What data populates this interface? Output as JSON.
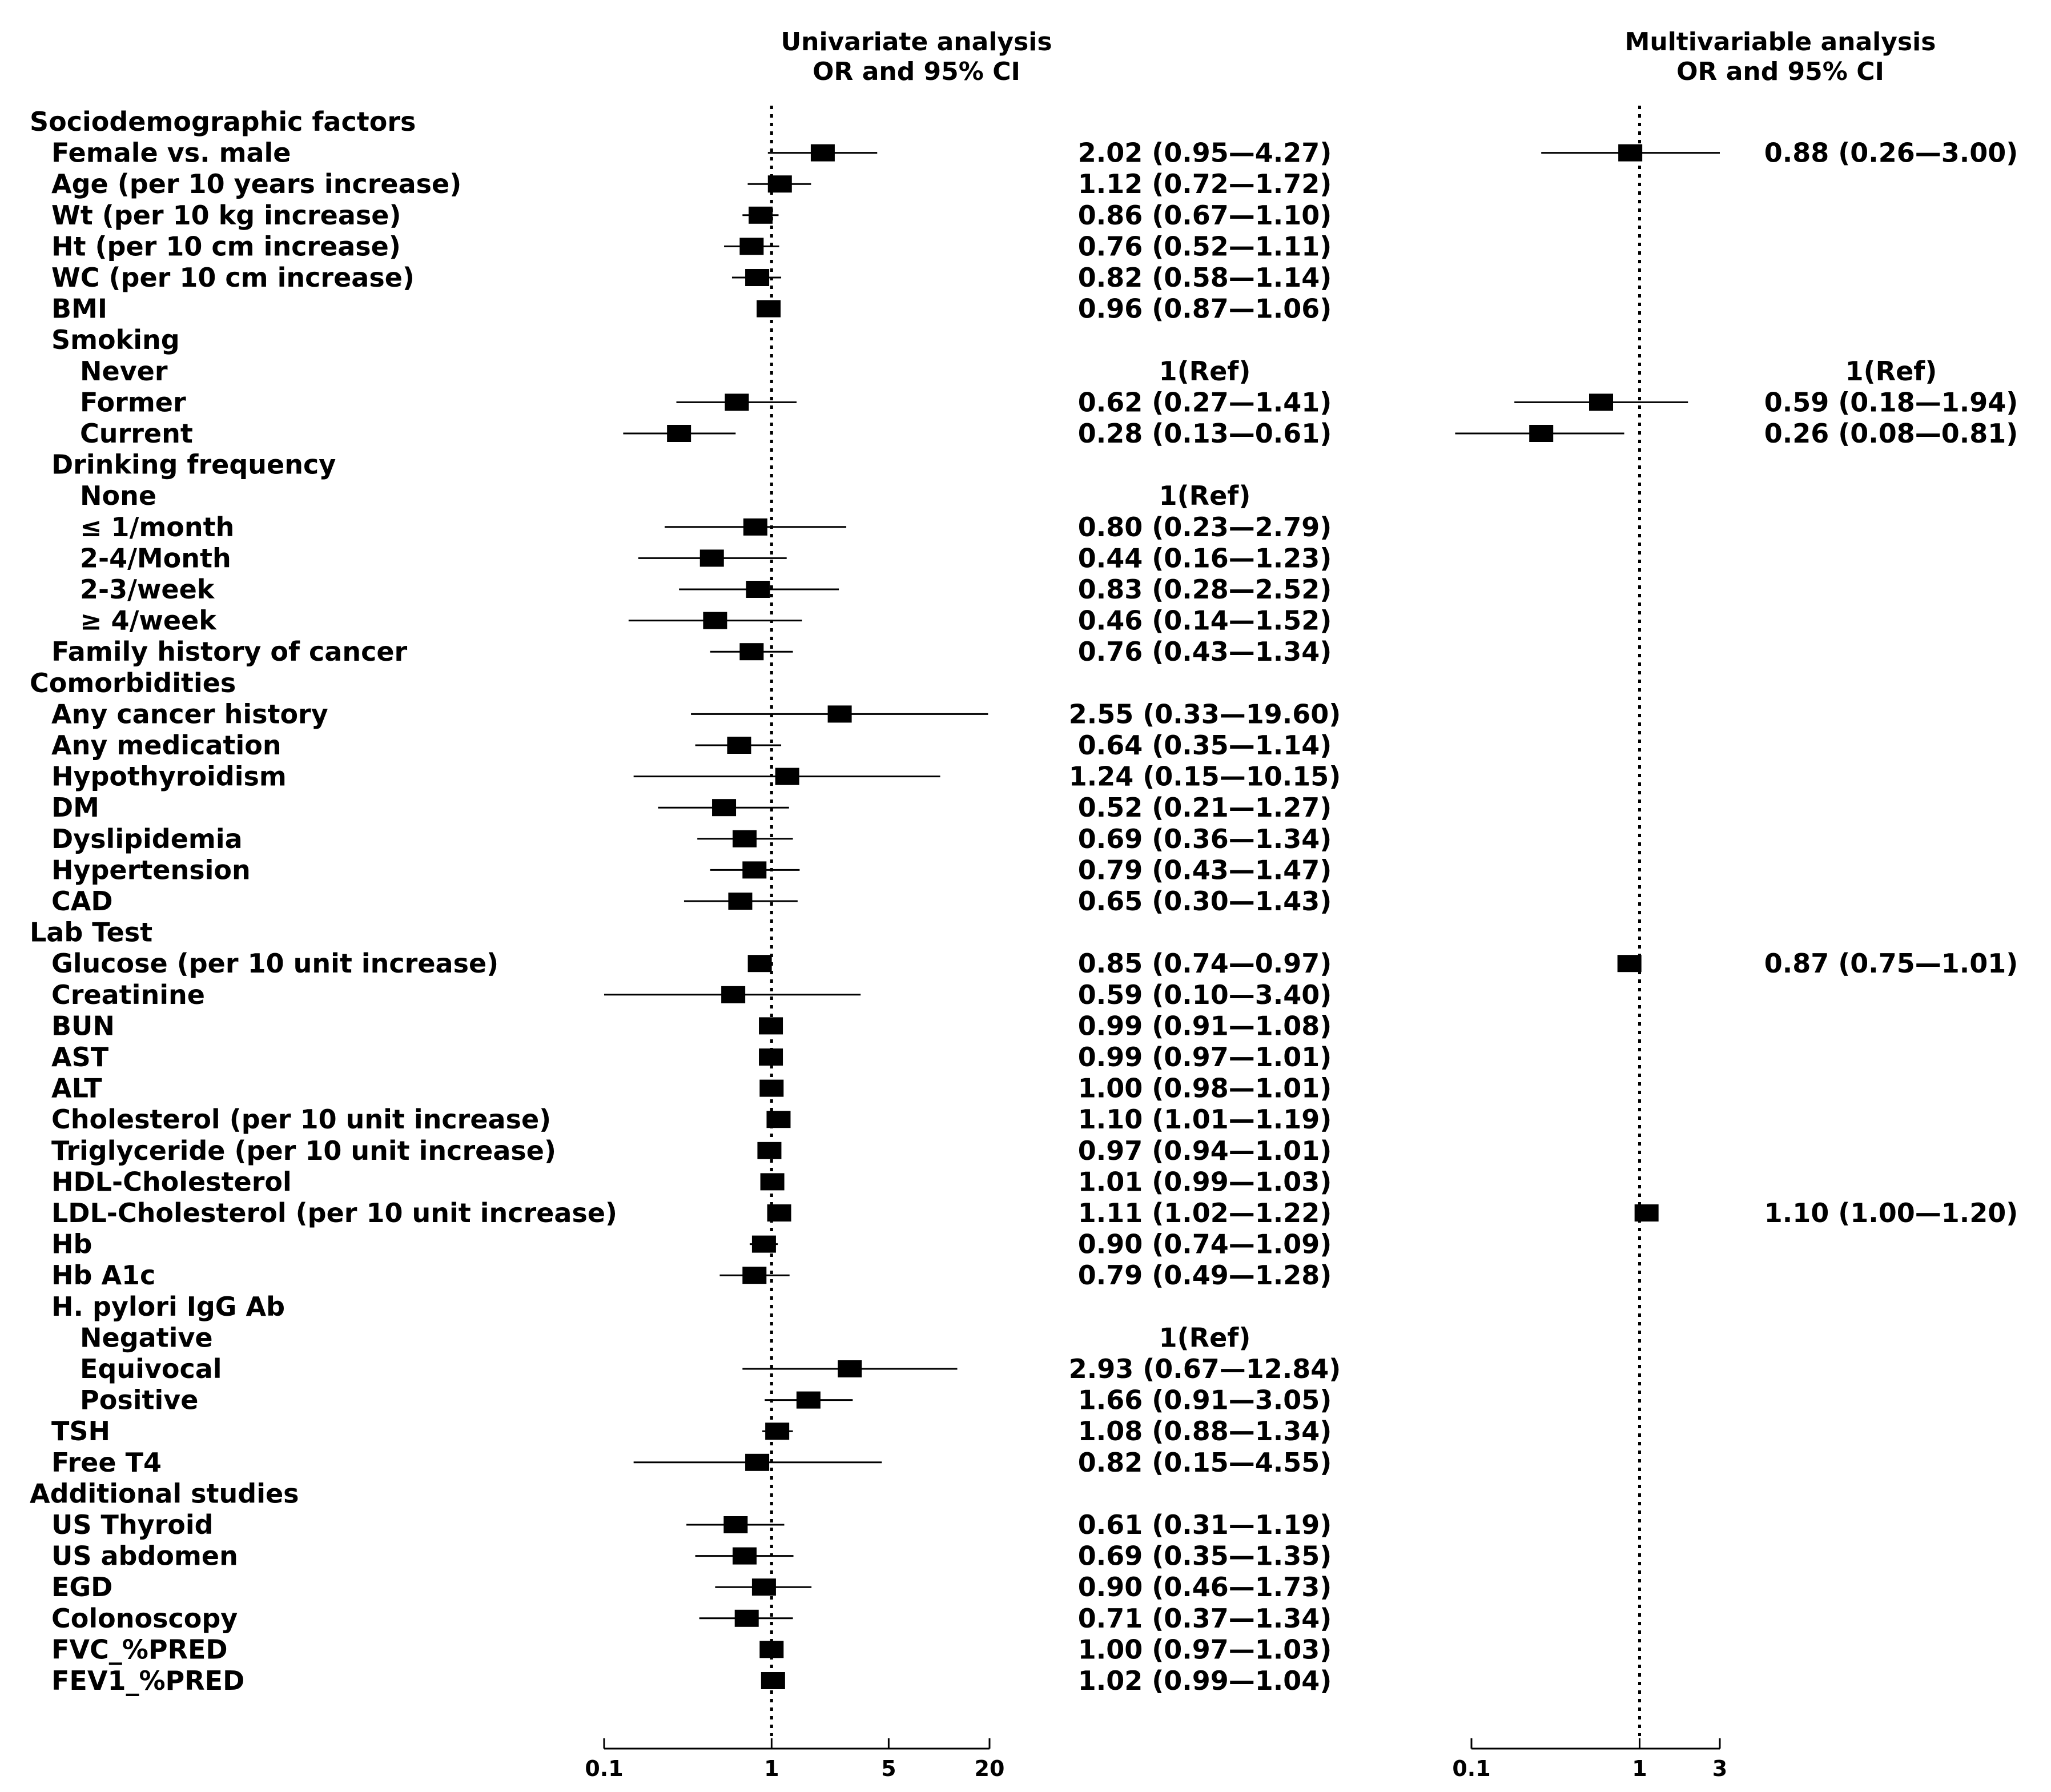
{
  "headers": {
    "uni_line1": "Univariate analysis",
    "uni_line2": "OR and 95% CI",
    "multi_line1": "Multivariable analysis",
    "multi_line2": "OR and 95% CI"
  },
  "chart_data": {
    "type": "forest",
    "xscale": "log",
    "reference_line": 1,
    "panels": [
      {
        "name": "Univariate analysis",
        "xlim": [
          0.1,
          20
        ],
        "ticks": [
          {
            "v": 0.1,
            "label": "0.1"
          },
          {
            "v": 1,
            "label": "1"
          },
          {
            "v": 5,
            "label": "5"
          },
          {
            "v": 20,
            "label": "20"
          }
        ]
      },
      {
        "name": "Multivariable analysis",
        "xlim": [
          0.1,
          3
        ],
        "ticks": [
          {
            "v": 0.1,
            "label": "0.1"
          },
          {
            "v": 1,
            "label": "1"
          },
          {
            "v": 3,
            "label": "3"
          }
        ]
      }
    ],
    "rows": [
      {
        "label": "Sociodemographic factors",
        "indent": 0
      },
      {
        "label": "Female vs. male",
        "indent": 1,
        "uni": {
          "or": 2.02,
          "lo": 0.95,
          "hi": 4.27,
          "text": "2.02 (0.95—4.27)"
        },
        "multi": {
          "or": 0.88,
          "lo": 0.26,
          "hi": 3.0,
          "text": "0.88 (0.26—3.00)"
        }
      },
      {
        "label": "Age (per 10 years increase)",
        "indent": 1,
        "uni": {
          "or": 1.12,
          "lo": 0.72,
          "hi": 1.72,
          "text": "1.12 (0.72—1.72)"
        }
      },
      {
        "label": "Wt  (per 10 kg increase)",
        "indent": 1,
        "uni": {
          "or": 0.86,
          "lo": 0.67,
          "hi": 1.1,
          "text": "0.86 (0.67—1.10)"
        }
      },
      {
        "label": "Ht  (per 10 cm increase)",
        "indent": 1,
        "uni": {
          "or": 0.76,
          "lo": 0.52,
          "hi": 1.11,
          "text": "0.76 (0.52—1.11)"
        }
      },
      {
        "label": "WC  (per 10 cm increase)",
        "indent": 1,
        "uni": {
          "or": 0.82,
          "lo": 0.58,
          "hi": 1.14,
          "text": "0.82 (0.58—1.14)"
        }
      },
      {
        "label": "BMI",
        "indent": 1,
        "uni": {
          "or": 0.96,
          "lo": 0.87,
          "hi": 1.06,
          "text": "0.96 (0.87—1.06)"
        }
      },
      {
        "label": "Smoking",
        "indent": 1
      },
      {
        "label": "Never",
        "indent": 2,
        "uni_ref": "1(Ref)",
        "multi_ref": "1(Ref)"
      },
      {
        "label": "Former",
        "indent": 2,
        "uni": {
          "or": 0.62,
          "lo": 0.27,
          "hi": 1.41,
          "text": "0.62 (0.27—1.41)"
        },
        "multi": {
          "or": 0.59,
          "lo": 0.18,
          "hi": 1.94,
          "text": "0.59 (0.18—1.94)"
        }
      },
      {
        "label": "Current",
        "indent": 2,
        "uni": {
          "or": 0.28,
          "lo": 0.13,
          "hi": 0.61,
          "text": "0.28 (0.13—0.61)"
        },
        "multi": {
          "or": 0.26,
          "lo": 0.08,
          "hi": 0.81,
          "text": "0.26 (0.08—0.81)"
        }
      },
      {
        "label": "Drinking frequency",
        "indent": 1
      },
      {
        "label": "None",
        "indent": 2,
        "uni_ref": "1(Ref)"
      },
      {
        "label": "≤ 1/month",
        "indent": 2,
        "uni": {
          "or": 0.8,
          "lo": 0.23,
          "hi": 2.79,
          "text": "0.80 (0.23—2.79)"
        }
      },
      {
        "label": "2-4/Month",
        "indent": 2,
        "uni": {
          "or": 0.44,
          "lo": 0.16,
          "hi": 1.23,
          "text": "0.44 (0.16—1.23)"
        }
      },
      {
        "label": "2-3/week",
        "indent": 2,
        "uni": {
          "or": 0.83,
          "lo": 0.28,
          "hi": 2.52,
          "text": "0.83 (0.28—2.52)"
        }
      },
      {
        "label": "≥ 4/week",
        "indent": 2,
        "uni": {
          "or": 0.46,
          "lo": 0.14,
          "hi": 1.52,
          "text": "0.46 (0.14—1.52)"
        }
      },
      {
        "label": "Family history of cancer",
        "indent": 1,
        "uni": {
          "or": 0.76,
          "lo": 0.43,
          "hi": 1.34,
          "text": "0.76 (0.43—1.34)"
        }
      },
      {
        "label": "Comorbidities",
        "indent": 0
      },
      {
        "label": "Any cancer history",
        "indent": 1,
        "uni": {
          "or": 2.55,
          "lo": 0.33,
          "hi": 19.6,
          "text": "2.55 (0.33—19.60)"
        }
      },
      {
        "label": "Any medication",
        "indent": 1,
        "uni": {
          "or": 0.64,
          "lo": 0.35,
          "hi": 1.14,
          "text": "0.64 (0.35—1.14)"
        }
      },
      {
        "label": "Hypothyroidism",
        "indent": 1,
        "uni": {
          "or": 1.24,
          "lo": 0.15,
          "hi": 10.15,
          "text": "1.24 (0.15—10.15)"
        }
      },
      {
        "label": "DM",
        "indent": 1,
        "uni": {
          "or": 0.52,
          "lo": 0.21,
          "hi": 1.27,
          "text": "0.52 (0.21—1.27)"
        }
      },
      {
        "label": "Dyslipidemia",
        "indent": 1,
        "uni": {
          "or": 0.69,
          "lo": 0.36,
          "hi": 1.34,
          "text": "0.69 (0.36—1.34)"
        }
      },
      {
        "label": "Hypertension",
        "indent": 1,
        "uni": {
          "or": 0.79,
          "lo": 0.43,
          "hi": 1.47,
          "text": "0.79 (0.43—1.47)"
        }
      },
      {
        "label": "CAD",
        "indent": 1,
        "uni": {
          "or": 0.65,
          "lo": 0.3,
          "hi": 1.43,
          "text": "0.65 (0.30—1.43)"
        }
      },
      {
        "label": "Lab Test",
        "indent": 0
      },
      {
        "label": "Glucose (per 10 unit increase)",
        "indent": 1,
        "uni": {
          "or": 0.85,
          "lo": 0.74,
          "hi": 0.97,
          "text": "0.85 (0.74—0.97)"
        },
        "multi": {
          "or": 0.87,
          "lo": 0.75,
          "hi": 1.01,
          "text": "0.87 (0.75—1.01)"
        }
      },
      {
        "label": "Creatinine",
        "indent": 1,
        "uni": {
          "or": 0.59,
          "lo": 0.1,
          "hi": 3.4,
          "text": "0.59 (0.10—3.40)"
        }
      },
      {
        "label": "BUN",
        "indent": 1,
        "uni": {
          "or": 0.99,
          "lo": 0.91,
          "hi": 1.08,
          "text": "0.99 (0.91—1.08)"
        }
      },
      {
        "label": "AST",
        "indent": 1,
        "uni": {
          "or": 0.99,
          "lo": 0.97,
          "hi": 1.01,
          "text": "0.99 (0.97—1.01)"
        }
      },
      {
        "label": "ALT",
        "indent": 1,
        "uni": {
          "or": 1.0,
          "lo": 0.98,
          "hi": 1.01,
          "text": "1.00 (0.98—1.01)"
        }
      },
      {
        "label": "Cholesterol (per 10 unit increase)",
        "indent": 1,
        "uni": {
          "or": 1.1,
          "lo": 1.01,
          "hi": 1.19,
          "text": "1.10 (1.01—1.19)"
        }
      },
      {
        "label": "Triglyceride (per 10 unit increase)",
        "indent": 1,
        "uni": {
          "or": 0.97,
          "lo": 0.94,
          "hi": 1.01,
          "text": "0.97 (0.94—1.01)"
        }
      },
      {
        "label": "HDL-Cholesterol",
        "indent": 1,
        "uni": {
          "or": 1.01,
          "lo": 0.99,
          "hi": 1.03,
          "text": "1.01 (0.99—1.03)"
        }
      },
      {
        "label": "LDL-Cholesterol (per 10 unit increase)",
        "indent": 1,
        "uni": {
          "or": 1.11,
          "lo": 1.02,
          "hi": 1.22,
          "text": "1.11 (1.02—1.22)"
        },
        "multi": {
          "or": 1.1,
          "lo": 1.0,
          "hi": 1.2,
          "text": "1.10 (1.00—1.20)"
        }
      },
      {
        "label": "Hb",
        "indent": 1,
        "uni": {
          "or": 0.9,
          "lo": 0.74,
          "hi": 1.09,
          "text": "0.90 (0.74—1.09)"
        }
      },
      {
        "label": "Hb A1c",
        "indent": 1,
        "uni": {
          "or": 0.79,
          "lo": 0.49,
          "hi": 1.28,
          "text": "0.79 (0.49—1.28)"
        }
      },
      {
        "label": "H. pylori IgG Ab",
        "indent": 1
      },
      {
        "label": "Negative",
        "indent": 2,
        "uni_ref": "1(Ref)"
      },
      {
        "label": "Equivocal",
        "indent": 2,
        "uni": {
          "or": 2.93,
          "lo": 0.67,
          "hi": 12.84,
          "text": "2.93 (0.67—12.84)"
        }
      },
      {
        "label": "Positive",
        "indent": 2,
        "uni": {
          "or": 1.66,
          "lo": 0.91,
          "hi": 3.05,
          "text": "1.66 (0.91—3.05)"
        }
      },
      {
        "label": "TSH",
        "indent": 1,
        "uni": {
          "or": 1.08,
          "lo": 0.88,
          "hi": 1.34,
          "text": "1.08 (0.88—1.34)"
        }
      },
      {
        "label": "Free T4",
        "indent": 1,
        "uni": {
          "or": 0.82,
          "lo": 0.15,
          "hi": 4.55,
          "text": "0.82 (0.15—4.55)"
        }
      },
      {
        "label": "Additional studies",
        "indent": 0
      },
      {
        "label": "US Thyroid",
        "indent": 1,
        "uni": {
          "or": 0.61,
          "lo": 0.31,
          "hi": 1.19,
          "text": "0.61 (0.31—1.19)"
        }
      },
      {
        "label": "US abdomen",
        "indent": 1,
        "uni": {
          "or": 0.69,
          "lo": 0.35,
          "hi": 1.35,
          "text": "0.69 (0.35—1.35)"
        }
      },
      {
        "label": "EGD",
        "indent": 1,
        "uni": {
          "or": 0.9,
          "lo": 0.46,
          "hi": 1.73,
          "text": "0.90 (0.46—1.73)"
        }
      },
      {
        "label": "Colonoscopy",
        "indent": 1,
        "uni": {
          "or": 0.71,
          "lo": 0.37,
          "hi": 1.34,
          "text": "0.71 (0.37—1.34)"
        }
      },
      {
        "label": "FVC_%PRED",
        "indent": 1,
        "uni": {
          "or": 1.0,
          "lo": 0.97,
          "hi": 1.03,
          "text": "1.00 (0.97—1.03)"
        }
      },
      {
        "label": "FEV1_%PRED",
        "indent": 1,
        "uni": {
          "or": 1.02,
          "lo": 0.99,
          "hi": 1.04,
          "text": "1.02 (0.99—1.04)"
        }
      }
    ]
  }
}
